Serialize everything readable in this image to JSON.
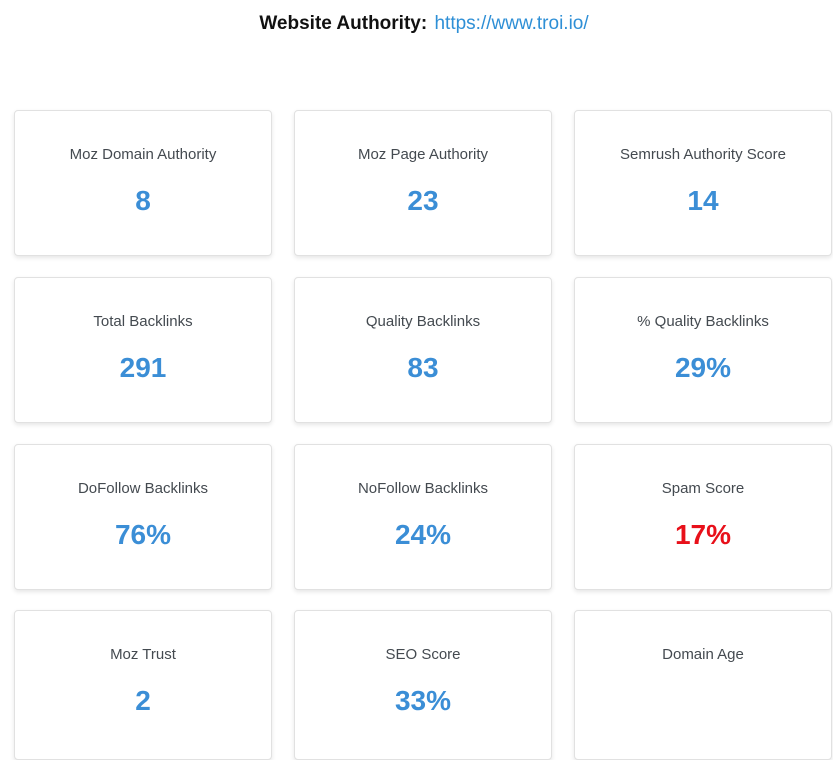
{
  "header": {
    "label": "Website Authority:",
    "url": "https://www.troi.io/"
  },
  "colors": {
    "metric_blue": "#3b8ed6",
    "metric_red": "#e8101a",
    "link_blue": "#2e8fd6"
  },
  "metrics": [
    {
      "label": "Moz Domain Authority",
      "value": "8"
    },
    {
      "label": "Moz Page Authority",
      "value": "23"
    },
    {
      "label": "Semrush Authority Score",
      "value": "14"
    },
    {
      "label": "Total Backlinks",
      "value": "291"
    },
    {
      "label": "Quality Backlinks",
      "value": "83"
    },
    {
      "label": "% Quality Backlinks",
      "value": "29%"
    },
    {
      "label": "DoFollow Backlinks",
      "value": "76%"
    },
    {
      "label": "NoFollow Backlinks",
      "value": "24%"
    },
    {
      "label": "Spam Score",
      "value": "17%"
    },
    {
      "label": "Moz Trust",
      "value": "2"
    },
    {
      "label": "SEO Score",
      "value": "33%"
    },
    {
      "label": "Domain Age",
      "value": ""
    }
  ]
}
